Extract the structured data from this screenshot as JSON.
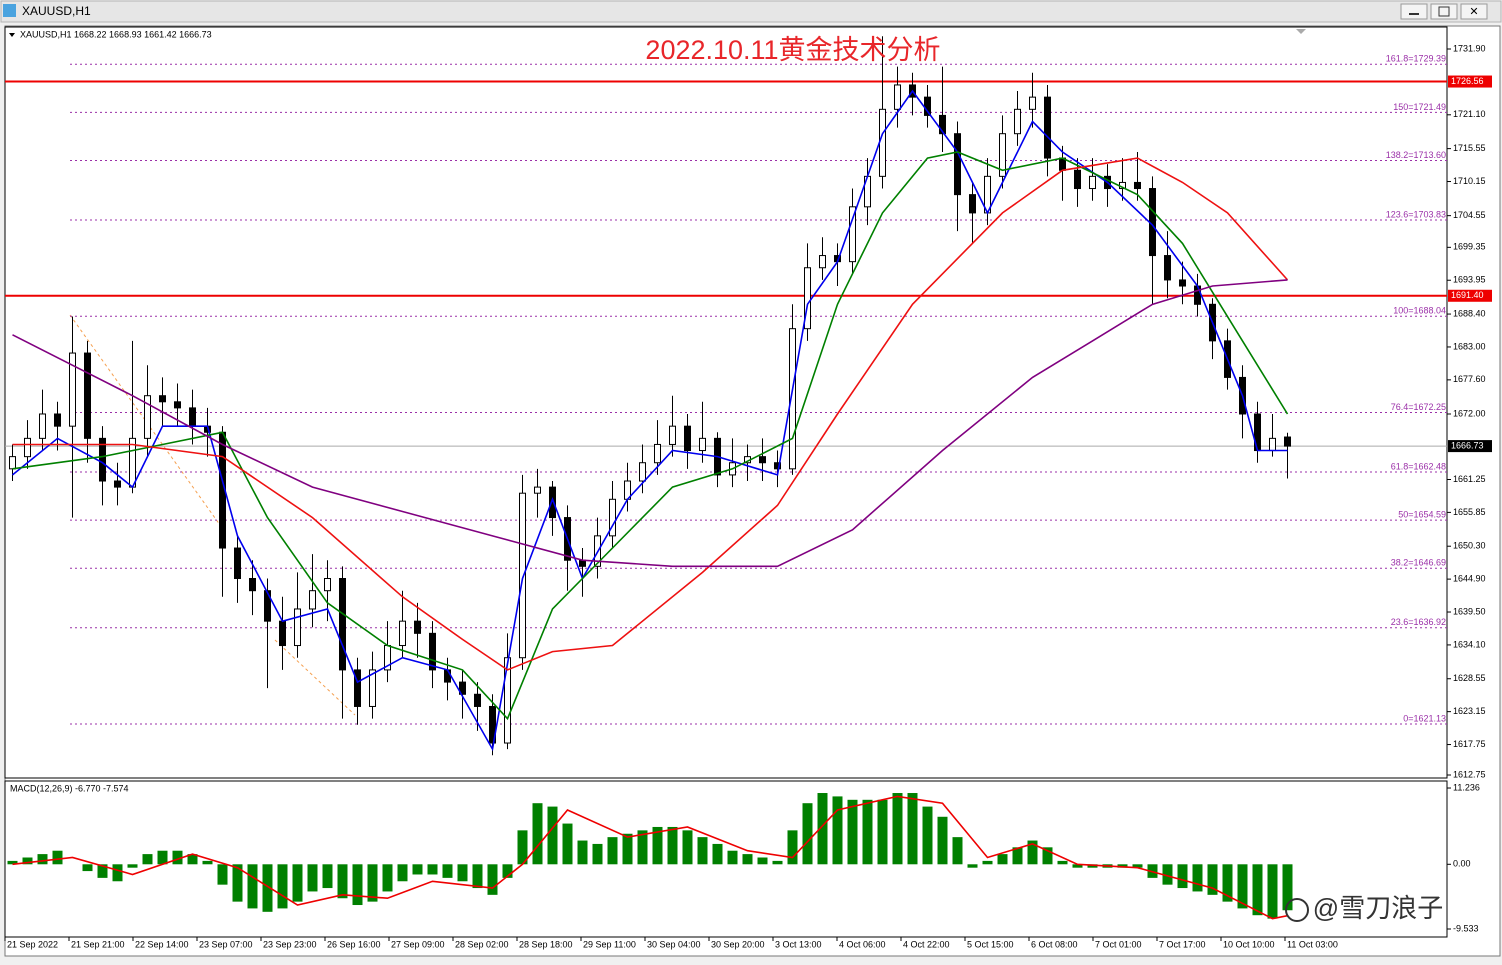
{
  "window_title": "XAUUSD,H1",
  "watermark": "@雪刀浪子",
  "chart_data": [
    {
      "type": "candlestick",
      "title": "2022.10.11黄金技术分析",
      "header": "XAUUSD,H1  1668.22 1668.93 1661.42 1666.73",
      "ohlc": [
        [
          1663,
          1667,
          1661,
          1665
        ],
        [
          1665,
          1671,
          1663,
          1668
        ],
        [
          1668,
          1676,
          1666,
          1672
        ],
        [
          1672,
          1674,
          1666,
          1670
        ],
        [
          1670,
          1688,
          1655,
          1682
        ],
        [
          1682,
          1684,
          1664,
          1668
        ],
        [
          1668,
          1670,
          1657,
          1661
        ],
        [
          1661,
          1664,
          1657,
          1660
        ],
        [
          1660,
          1684,
          1659,
          1668
        ],
        [
          1668,
          1680,
          1665,
          1675
        ],
        [
          1675,
          1678,
          1670,
          1674
        ],
        [
          1674,
          1677,
          1670,
          1673
        ],
        [
          1673,
          1676,
          1667,
          1670
        ],
        [
          1670,
          1673,
          1665,
          1669
        ],
        [
          1669,
          1670,
          1642,
          1650
        ],
        [
          1650,
          1652,
          1641,
          1645
        ],
        [
          1645,
          1648,
          1639,
          1643
        ],
        [
          1643,
          1645,
          1627,
          1638
        ],
        [
          1638,
          1642,
          1630,
          1634
        ],
        [
          1634,
          1646,
          1632,
          1640
        ],
        [
          1640,
          1649,
          1637,
          1643
        ],
        [
          1643,
          1648,
          1638,
          1645
        ],
        [
          1645,
          1647,
          1622,
          1630
        ],
        [
          1630,
          1632,
          1621,
          1624
        ],
        [
          1624,
          1633,
          1622,
          1630
        ],
        [
          1630,
          1638,
          1628,
          1634
        ],
        [
          1634,
          1643,
          1632,
          1638
        ],
        [
          1638,
          1641,
          1632,
          1636
        ],
        [
          1636,
          1638,
          1627,
          1630
        ],
        [
          1630,
          1632,
          1625,
          1628
        ],
        [
          1628,
          1630,
          1622,
          1626
        ],
        [
          1626,
          1628,
          1620,
          1624
        ],
        [
          1624,
          1626,
          1616,
          1618
        ],
        [
          1618,
          1636,
          1617,
          1632
        ],
        [
          1632,
          1662,
          1630,
          1659
        ],
        [
          1659,
          1663,
          1655,
          1660
        ],
        [
          1660,
          1661,
          1652,
          1655
        ],
        [
          1655,
          1657,
          1643,
          1648
        ],
        [
          1648,
          1650,
          1642,
          1647
        ],
        [
          1647,
          1655,
          1645,
          1652
        ],
        [
          1652,
          1661,
          1650,
          1658
        ],
        [
          1658,
          1664,
          1656,
          1661
        ],
        [
          1661,
          1667,
          1659,
          1664
        ],
        [
          1664,
          1671,
          1662,
          1667
        ],
        [
          1667,
          1675,
          1665,
          1670
        ],
        [
          1670,
          1672,
          1663,
          1666
        ],
        [
          1666,
          1674,
          1664,
          1668
        ],
        [
          1668,
          1669,
          1660,
          1662
        ],
        [
          1662,
          1668,
          1660,
          1664
        ],
        [
          1664,
          1667,
          1661,
          1665
        ],
        [
          1665,
          1668,
          1661,
          1664
        ],
        [
          1664,
          1666,
          1660,
          1663
        ],
        [
          1663,
          1690,
          1662,
          1686
        ],
        [
          1686,
          1700,
          1684,
          1696
        ],
        [
          1696,
          1701,
          1694,
          1698
        ],
        [
          1698,
          1700,
          1693,
          1697
        ],
        [
          1697,
          1709,
          1695,
          1706
        ],
        [
          1706,
          1714,
          1703,
          1711
        ],
        [
          1711,
          1734,
          1709,
          1722
        ],
        [
          1722,
          1729,
          1719,
          1726
        ],
        [
          1726,
          1728,
          1721,
          1724
        ],
        [
          1724,
          1726,
          1719,
          1721
        ],
        [
          1721,
          1729,
          1715,
          1718
        ],
        [
          1718,
          1720,
          1702,
          1708
        ],
        [
          1708,
          1710,
          1700,
          1705
        ],
        [
          1705,
          1714,
          1703,
          1711
        ],
        [
          1711,
          1721,
          1709,
          1718
        ],
        [
          1718,
          1725,
          1716,
          1722
        ],
        [
          1722,
          1728,
          1719,
          1724
        ],
        [
          1724,
          1726,
          1711,
          1714
        ],
        [
          1714,
          1716,
          1707,
          1712
        ],
        [
          1712,
          1714,
          1706,
          1709
        ],
        [
          1709,
          1714,
          1707,
          1711
        ],
        [
          1711,
          1713,
          1706,
          1709
        ],
        [
          1709,
          1714,
          1707,
          1710
        ],
        [
          1710,
          1715,
          1707,
          1709
        ],
        [
          1709,
          1711,
          1690,
          1698
        ],
        [
          1698,
          1702,
          1691,
          1694
        ],
        [
          1694,
          1697,
          1690,
          1693
        ],
        [
          1693,
          1695,
          1688,
          1690
        ],
        [
          1690,
          1691,
          1681,
          1684
        ],
        [
          1684,
          1686,
          1676,
          1678
        ],
        [
          1678,
          1680,
          1668,
          1672
        ],
        [
          1672,
          1674,
          1664,
          1666
        ],
        [
          1666,
          1672,
          1665,
          1668
        ],
        [
          1668.22,
          1668.93,
          1661.42,
          1666.73
        ]
      ],
      "moving_averages": [
        {
          "color": "#0000ee",
          "x": [
            0,
            3,
            6,
            8,
            10,
            13,
            15,
            18,
            21,
            23,
            26,
            29,
            32,
            34,
            36,
            38,
            41,
            44,
            47,
            51,
            53,
            55,
            58,
            60,
            63,
            65,
            68,
            70,
            73,
            76,
            79,
            82,
            83,
            85
          ],
          "values": [
            1662,
            1668,
            1664,
            1660,
            1670,
            1670,
            1652,
            1638,
            1640,
            1628,
            1632,
            1630,
            1617,
            1645,
            1658,
            1645,
            1658,
            1666,
            1665,
            1662,
            1690,
            1697,
            1718,
            1725,
            1715,
            1705,
            1720,
            1715,
            1710,
            1703,
            1693,
            1675,
            1666,
            1666
          ]
        },
        {
          "color": "#008000",
          "x": [
            0,
            6,
            10,
            14,
            17,
            21,
            25,
            30,
            33,
            36,
            40,
            44,
            48,
            52,
            55,
            58,
            61,
            63,
            66,
            70,
            75,
            78,
            82,
            85
          ],
          "values": [
            1663,
            1665,
            1667,
            1669,
            1655,
            1641,
            1634,
            1630,
            1622,
            1640,
            1650,
            1660,
            1663,
            1668,
            1690,
            1705,
            1714,
            1715,
            1712,
            1714,
            1708,
            1700,
            1684,
            1672
          ]
        },
        {
          "color": "#ee1111",
          "x": [
            0,
            8,
            14,
            20,
            26,
            30,
            33,
            36,
            40,
            46,
            51,
            55,
            60,
            66,
            70,
            75,
            78,
            81,
            85
          ],
          "values": [
            1667,
            1667,
            1665,
            1655,
            1642,
            1635,
            1630,
            1633,
            1634,
            1646,
            1657,
            1672,
            1690,
            1705,
            1712,
            1714,
            1710,
            1705,
            1694
          ]
        },
        {
          "color": "#800080",
          "x": [
            0,
            8,
            14,
            20,
            26,
            32,
            38,
            44,
            51,
            56,
            62,
            68,
            72,
            76,
            80,
            85
          ],
          "values": [
            1685,
            1675,
            1667,
            1660,
            1656,
            1652,
            1648,
            1647,
            1647,
            1653,
            1666,
            1678,
            1684,
            1690,
            1693,
            1694
          ]
        }
      ],
      "levels": [
        {
          "value": 1726.56,
          "label": "1726.56",
          "color": "#ee0000"
        },
        {
          "value": 1691.4,
          "label": "1691.40",
          "color": "#ee0000"
        }
      ],
      "fibonacci": [
        {
          "value": 1729.39,
          "label": "161.8=1729.39"
        },
        {
          "value": 1721.49,
          "label": "150=1721.49"
        },
        {
          "value": 1713.6,
          "label": "138.2=1713.60"
        },
        {
          "value": 1703.83,
          "label": "123.6=1703.83"
        },
        {
          "value": 1688.04,
          "label": "100=1688.04"
        },
        {
          "value": 1672.25,
          "label": "76.4=1672.25"
        },
        {
          "value": 1662.48,
          "label": "61.8=1662.48"
        },
        {
          "value": 1654.59,
          "label": "50=1654.59"
        },
        {
          "value": 1646.69,
          "label": "38.2=1646.69"
        },
        {
          "value": 1636.92,
          "label": "23.6=1636.92"
        },
        {
          "value": 1621.13,
          "label": "0=1621.13"
        }
      ],
      "ylim": [
        1612.26,
        1735.51
      ],
      "yticks": [
        {
          "value": 1731.9,
          "label": "1731.90"
        },
        {
          "value": 1721.1,
          "label": "1721.10"
        },
        {
          "value": 1715.55,
          "label": "1715.55"
        },
        {
          "value": 1710.15,
          "label": "1710.15"
        },
        {
          "value": 1704.55,
          "label": "1704.55"
        },
        {
          "value": 1699.35,
          "label": "1699.35"
        },
        {
          "value": 1693.95,
          "label": "1693.95"
        },
        {
          "value": 1688.4,
          "label": "1688.40"
        },
        {
          "value": 1683.0,
          "label": "1683.00"
        },
        {
          "value": 1677.6,
          "label": "1677.60"
        },
        {
          "value": 1672.0,
          "label": "1672.00"
        },
        {
          "value": 1661.25,
          "label": "1661.25"
        },
        {
          "value": 1655.85,
          "label": "1655.85"
        },
        {
          "value": 1650.3,
          "label": "1650.30"
        },
        {
          "value": 1644.9,
          "label": "1644.90"
        },
        {
          "value": 1639.5,
          "label": "1639.50"
        },
        {
          "value": 1634.1,
          "label": "1634.10"
        },
        {
          "value": 1628.55,
          "label": "1628.55"
        },
        {
          "value": 1623.15,
          "label": "1623.15"
        },
        {
          "value": 1617.75,
          "label": "1617.75"
        },
        {
          "value": 1612.75,
          "label": "1612.75"
        }
      ],
      "time_labels": [
        "21 Sep 2022",
        "21 Sep 21:00",
        "22 Sep 14:00",
        "23 Sep 07:00",
        "23 Sep 23:00",
        "26 Sep 16:00",
        "27 Sep 09:00",
        "28 Sep 02:00",
        "28 Sep 18:00",
        "29 Sep 11:00",
        "30 Sep 04:00",
        "30 Sep 20:00",
        "3 Oct 13:00",
        "4 Oct 06:00",
        "4 Oct 22:00",
        "5 Oct 15:00",
        "6 Oct 08:00",
        "7 Oct 01:00",
        "7 Oct 17:00",
        "10 Oct 10:00",
        "11 Oct 03:00"
      ]
    },
    {
      "type": "macd",
      "header": "MACD(12,26,9) -6.770 -7.574",
      "histogram_color": "#008000",
      "values": [
        0.5,
        1,
        1.5,
        2,
        0,
        -1,
        -2,
        -2.5,
        -0.5,
        1.5,
        2,
        2,
        1.5,
        0.5,
        -3,
        -5.5,
        -6.5,
        -7,
        -6.5,
        -5.5,
        -4,
        -3.5,
        -5,
        -6,
        -5.5,
        -4,
        -2.5,
        -1.5,
        -1.5,
        -2,
        -2.5,
        -3.5,
        -4.5,
        -2,
        5,
        9,
        8.5,
        6,
        3.5,
        3,
        4,
        4.5,
        5,
        5.5,
        5.5,
        5,
        4,
        3,
        2,
        1.5,
        1,
        0.5,
        5,
        9,
        10.5,
        10,
        9.5,
        9.5,
        9.5,
        10.5,
        10.5,
        8.5,
        7,
        4,
        -0.5,
        0.5,
        1.5,
        2.5,
        3.5,
        2.5,
        0.5,
        -0.5,
        -0.5,
        -0.5,
        -0.5,
        -0.5,
        -2,
        -3,
        -3.5,
        -4,
        -4.5,
        -5.5,
        -6.5,
        -7.5,
        -8,
        -6.77
      ],
      "signal": {
        "color": "#ee0000",
        "x": [
          0,
          4,
          8,
          12,
          15,
          19,
          22,
          25,
          28,
          32,
          34,
          37,
          41,
          45,
          49,
          52,
          55,
          59,
          62,
          65,
          68,
          71,
          75,
          80,
          84,
          85
        ],
        "values": [
          0,
          1,
          -1.5,
          1.5,
          -0.5,
          -6,
          -4.5,
          -5,
          -2.5,
          -3.5,
          0,
          8,
          4,
          5.5,
          2,
          1,
          8,
          10,
          9,
          1,
          3,
          0,
          -0.5,
          -3.5,
          -8,
          -7.574
        ]
      },
      "ylim": [
        -10.71,
        12.27
      ],
      "yticks": [
        11.236,
        {
          "value": 0,
          "label": "0.00"
        },
        -9.533
      ]
    }
  ]
}
